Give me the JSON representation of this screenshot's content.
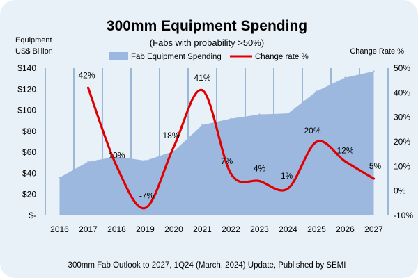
{
  "chart_data": {
    "type": "area+line",
    "title": "300mm Equipment Spending",
    "subtitle": "(Fabs with probability >50%)",
    "left_axis_title": [
      "Equipment",
      "US$ Billion"
    ],
    "right_axis_title": "Change Rate %",
    "footer": "300mm Fab Outlook to 2027, 1Q24 (March, 2024) Update, Published by SEMI",
    "categories": [
      "2016",
      "2017",
      "2018",
      "2019",
      "2020",
      "2021",
      "2022",
      "2023",
      "2024",
      "2025",
      "2026",
      "2027"
    ],
    "left_ticks": [
      "$140",
      "$120",
      "$100",
      "$80",
      "$60",
      "$40",
      "$20",
      "$-"
    ],
    "right_ticks": [
      "50%",
      "40%",
      "30%",
      "20%",
      "10%",
      "0%",
      "-10%"
    ],
    "ylim_left": [
      0,
      140
    ],
    "ylim_right": [
      -10,
      50
    ],
    "legend": [
      "Fab Equipment Spending",
      "Change rate %"
    ],
    "series": [
      {
        "name": "Fab Equipment Spending",
        "type": "area",
        "axis": "left",
        "color": "#9db8de",
        "values": [
          36,
          51,
          56,
          52,
          61,
          86,
          92,
          96,
          97,
          118,
          131,
          137
        ]
      },
      {
        "name": "Change rate %",
        "type": "line",
        "axis": "right",
        "color": "#e00000",
        "values": [
          null,
          42,
          10,
          -7,
          18,
          41,
          7,
          4,
          1,
          20,
          12,
          5
        ],
        "labels": [
          "",
          "42%",
          "10%",
          "-7%",
          "18%",
          "41%",
          "7%",
          "4%",
          "1%",
          "20%",
          "12%",
          "5%"
        ]
      }
    ],
    "colors": {
      "background": "#e8f1f8",
      "gridline": "#4f7fb6",
      "area": "#9db8de",
      "line": "#e00000"
    }
  }
}
